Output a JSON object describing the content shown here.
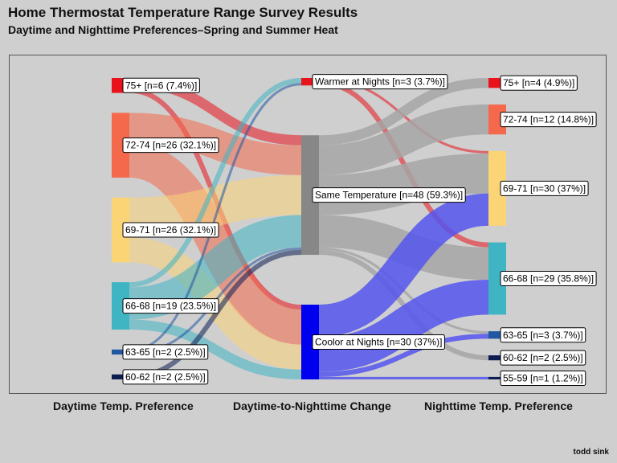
{
  "title": "Home Thermostat Temperature Range Survey Results",
  "subtitle": "Daytime and Nighttime Preferences–Spring and Summer Heat",
  "credit": "todd sink",
  "column_titles": [
    "Daytime Temp. Preference",
    "Daytime-to-Nighttime Change",
    "Nighttime Temp. Preference"
  ],
  "chart_data": {
    "type": "sankey",
    "total_respondents": 81,
    "columns": [
      {
        "name": "Daytime Temp. Preference",
        "nodes": [
          {
            "id": "d75",
            "label": "75+  [n=6 (7.4%)]",
            "value": 6,
            "color": "#e8131b"
          },
          {
            "id": "d72",
            "label": "72-74  [n=26 (32.1%)]",
            "value": 26,
            "color": "#f4694c"
          },
          {
            "id": "d69",
            "label": "69-71  [n=26 (32.1%)]",
            "value": 26,
            "color": "#fbd476"
          },
          {
            "id": "d66",
            "label": "66-68  [n=19 (23.5%)]",
            "value": 19,
            "color": "#3fb5c4"
          },
          {
            "id": "d63",
            "label": "63-65  [n=2 (2.5%)]",
            "value": 2,
            "color": "#2158a3"
          },
          {
            "id": "d60",
            "label": "60-62  [n=2 (2.5%)]",
            "value": 2,
            "color": "#0d1d52"
          }
        ]
      },
      {
        "name": "Daytime-to-Nighttime Change",
        "nodes": [
          {
            "id": "warmer",
            "label": "Warmer at Nights [n=3 (3.7%)]",
            "value": 3,
            "color": "#e8131b"
          },
          {
            "id": "same",
            "label": "Same Temperature [n=48 (59.3%)]",
            "value": 48,
            "color": "#878787"
          },
          {
            "id": "cooler",
            "label": "Coolor at Nights [n=30 (37%)]",
            "value": 30,
            "color": "#0000ee"
          }
        ]
      },
      {
        "name": "Nighttime Temp. Preference",
        "nodes": [
          {
            "id": "n75",
            "label": "75+ [n=4 (4.9%)]",
            "value": 4,
            "color": "#e8131b"
          },
          {
            "id": "n72",
            "label": "72-74 [n=12 (14.8%)]",
            "value": 12,
            "color": "#f4694c"
          },
          {
            "id": "n69",
            "label": "69-71 [n=30 (37%)]",
            "value": 30,
            "color": "#fbd476"
          },
          {
            "id": "n66",
            "label": "66-68 [n=29 (35.8%)]",
            "value": 29,
            "color": "#3fb5c4"
          },
          {
            "id": "n63",
            "label": "63-65 [n=3 (3.7%)]",
            "value": 3,
            "color": "#2158a3"
          },
          {
            "id": "n60",
            "label": "60-62 [n=2 (2.5%)]",
            "value": 2,
            "color": "#0d1d52"
          },
          {
            "id": "n55",
            "label": "55-59 [n=1 (1.2%)]",
            "value": 1,
            "color": "#0d1d52"
          }
        ]
      }
    ],
    "links": [
      {
        "source": "d75",
        "target": "same",
        "value": 4
      },
      {
        "source": "d75",
        "target": "cooler",
        "value": 2
      },
      {
        "source": "d72",
        "target": "same",
        "value": 12
      },
      {
        "source": "d72",
        "target": "cooler",
        "value": 14
      },
      {
        "source": "d69",
        "target": "same",
        "value": 16
      },
      {
        "source": "d69",
        "target": "cooler",
        "value": 10
      },
      {
        "source": "d66",
        "target": "warmer",
        "value": 2
      },
      {
        "source": "d66",
        "target": "same",
        "value": 13
      },
      {
        "source": "d66",
        "target": "cooler",
        "value": 4
      },
      {
        "source": "d63",
        "target": "warmer",
        "value": 1
      },
      {
        "source": "d63",
        "target": "same",
        "value": 1
      },
      {
        "source": "d60",
        "target": "same",
        "value": 2
      },
      {
        "source": "warmer",
        "target": "n69",
        "value": 1
      },
      {
        "source": "warmer",
        "target": "n66",
        "value": 2
      },
      {
        "source": "same",
        "target": "n75",
        "value": 4
      },
      {
        "source": "same",
        "target": "n72",
        "value": 12
      },
      {
        "source": "same",
        "target": "n69",
        "value": 16
      },
      {
        "source": "same",
        "target": "n66",
        "value": 13
      },
      {
        "source": "same",
        "target": "n63",
        "value": 1
      },
      {
        "source": "same",
        "target": "n60",
        "value": 2
      },
      {
        "source": "cooler",
        "target": "n69",
        "value": 13
      },
      {
        "source": "cooler",
        "target": "n66",
        "value": 14
      },
      {
        "source": "cooler",
        "target": "n63",
        "value": 2
      },
      {
        "source": "cooler",
        "target": "n55",
        "value": 1
      }
    ],
    "link_colors": {
      "same": "#a6a6a6",
      "cooler": "#5555ee"
    }
  }
}
